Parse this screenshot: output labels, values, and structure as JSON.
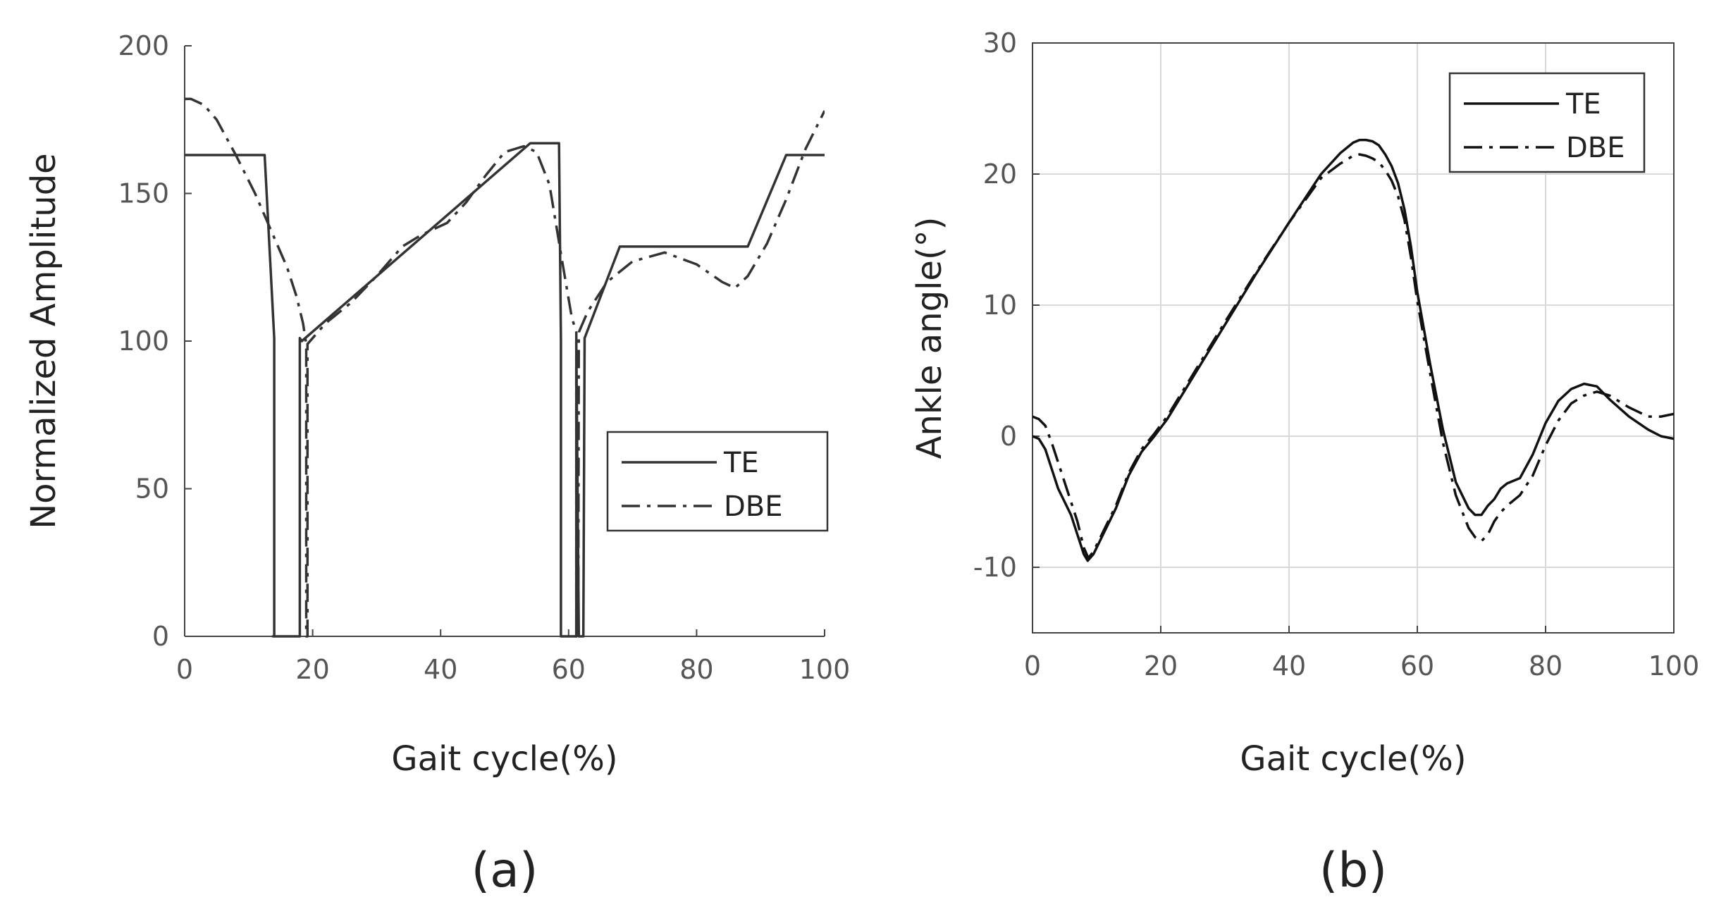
{
  "chart_data": [
    {
      "type": "line",
      "panel_label": "(a)",
      "xlabel": "Gait cycle(%)",
      "ylabel": "Normalized Amplitude",
      "xlim": [
        0,
        100
      ],
      "ylim": [
        0,
        200
      ],
      "xticks": [
        0,
        20,
        40,
        60,
        80,
        100
      ],
      "yticks": [
        0,
        50,
        100,
        150,
        200
      ],
      "grid": false,
      "legend_position": "center-right",
      "series": [
        {
          "name": "TE",
          "style": "solid",
          "color": "#333333",
          "x": [
            0,
            12.5,
            14,
            14,
            13.8,
            16.8,
            18,
            18,
            18.3,
            54,
            58.5,
            58.8,
            58.8,
            61.2,
            61.2,
            61.6,
            62.3,
            62.5,
            68,
            88,
            94,
            100
          ],
          "y": [
            163,
            163,
            101,
            0,
            0,
            0,
            0,
            101,
            100,
            167,
            167,
            100,
            0,
            0,
            100,
            0,
            0,
            101,
            132,
            132,
            163,
            163
          ]
        },
        {
          "name": "DBE",
          "style": "dashdot",
          "color": "#333333",
          "x": [
            0,
            1,
            3,
            5,
            8,
            11,
            14,
            16,
            17.5,
            18.5,
            19,
            19,
            19.2,
            19.2,
            20,
            22,
            26,
            30,
            34,
            37,
            41,
            44,
            47,
            50,
            53,
            55,
            57,
            59,
            60.5,
            61.2,
            61.2,
            61.5,
            61.6,
            63,
            66,
            70,
            75,
            80,
            84,
            86,
            88,
            91,
            94,
            97,
            100
          ],
          "y": [
            182,
            182,
            180,
            175,
            163,
            150,
            135,
            125,
            115,
            106,
            99,
            0,
            0,
            99,
            101,
            106,
            113,
            122,
            132,
            136,
            140,
            147,
            156,
            164,
            166,
            164,
            153,
            127,
            108,
            103,
            0,
            0,
            103,
            110,
            120,
            127,
            130,
            126,
            120,
            118,
            122,
            133,
            148,
            165,
            178
          ]
        }
      ]
    },
    {
      "type": "line",
      "panel_label": "(b)",
      "xlabel": "Gait cycle(%)",
      "ylabel": "Ankle angle(°)",
      "xlim": [
        0,
        100
      ],
      "ylim": [
        -15,
        30
      ],
      "xticks": [
        0,
        20,
        40,
        60,
        80,
        100
      ],
      "yticks": [
        -10,
        0,
        10,
        20,
        30
      ],
      "grid": true,
      "legend_position": "top-right",
      "series": [
        {
          "name": "TE",
          "style": "solid",
          "color": "#111111",
          "x": [
            0,
            1,
            2,
            3,
            4,
            5,
            6,
            7,
            8,
            8.6,
            9.5,
            11,
            13,
            15,
            17,
            19,
            21,
            25,
            30,
            35,
            40,
            45,
            48,
            50,
            51,
            52,
            53,
            54,
            55,
            56,
            57,
            58,
            59,
            60,
            62,
            64,
            66,
            68,
            69,
            70,
            71,
            72,
            73,
            74,
            76,
            78,
            80,
            82,
            84,
            86,
            88,
            90,
            93,
            96,
            98,
            100
          ],
          "y": [
            0,
            -0.2,
            -1,
            -2.5,
            -4,
            -5,
            -6,
            -7.5,
            -9,
            -9.5,
            -9,
            -7.5,
            -5.5,
            -3,
            -1.2,
            0,
            1.3,
            4.5,
            8.5,
            12.5,
            16.3,
            20,
            21.6,
            22.4,
            22.6,
            22.6,
            22.5,
            22.2,
            21.5,
            20.6,
            19.3,
            17.3,
            14.5,
            11,
            5.5,
            0.5,
            -3.5,
            -5.5,
            -6,
            -6,
            -5.3,
            -4.8,
            -4,
            -3.6,
            -3.2,
            -1.4,
            1,
            2.7,
            3.6,
            4,
            3.8,
            2.8,
            1.5,
            0.5,
            0,
            -0.2
          ]
        },
        {
          "name": "DBE",
          "style": "dashdot",
          "color": "#111111",
          "x": [
            0,
            1,
            2,
            3,
            4,
            5,
            6,
            7,
            8,
            8.7,
            9.5,
            11,
            13,
            15,
            17,
            19,
            21,
            25,
            30,
            35,
            40,
            45,
            48,
            50,
            51,
            52,
            53,
            54,
            55,
            56,
            57,
            58,
            59,
            60,
            62,
            64,
            66,
            68,
            69,
            70,
            71,
            72,
            73,
            74,
            76,
            78,
            80,
            82,
            84,
            86,
            88,
            90,
            93,
            96,
            98,
            100
          ],
          "y": [
            1.5,
            1.3,
            0.8,
            -0.5,
            -2,
            -3.5,
            -5,
            -6.5,
            -8.5,
            -9.3,
            -8.8,
            -7.3,
            -5.3,
            -2.8,
            -1,
            0.2,
            1.5,
            4.7,
            8.7,
            12.6,
            16.3,
            19.7,
            20.8,
            21.4,
            21.5,
            21.4,
            21.2,
            20.9,
            20.3,
            19.5,
            18.3,
            16.5,
            13.7,
            10.3,
            4.8,
            -0.5,
            -4.5,
            -7,
            -7.7,
            -8,
            -7.5,
            -6.5,
            -5.8,
            -5.3,
            -4.5,
            -3,
            -0.7,
            1.2,
            2.5,
            3.1,
            3.4,
            3.1,
            2.2,
            1.5,
            1.5,
            1.7
          ]
        }
      ]
    }
  ]
}
